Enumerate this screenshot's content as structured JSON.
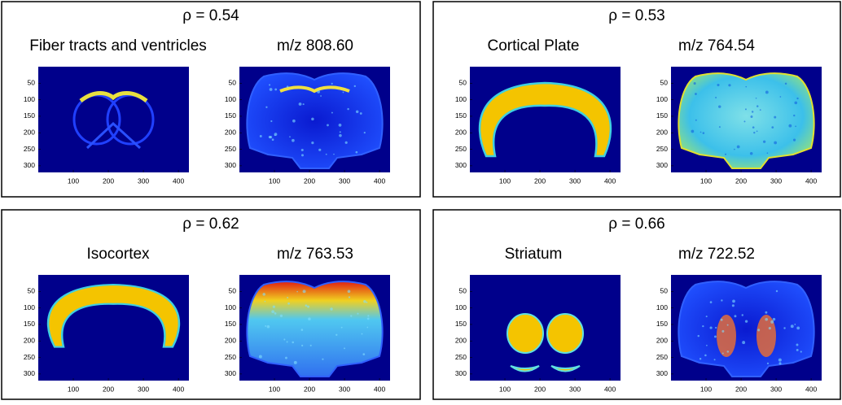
{
  "image_axes": {
    "xlim": [
      0,
      430
    ],
    "ylim": [
      0,
      320
    ],
    "xticks": [
      100,
      200,
      300,
      400
    ],
    "yticks": [
      50,
      100,
      150,
      200,
      250,
      300
    ]
  },
  "panels": [
    {
      "rho": "ρ = 0.54",
      "region": "Fiber tracts and ventricles",
      "mz": "m/z 808.60"
    },
    {
      "rho": "ρ = 0.53",
      "region": "Cortical Plate",
      "mz": "m/z 764.54"
    },
    {
      "rho": "ρ = 0.62",
      "region": "Isocortex",
      "mz": "m/z 763.53"
    },
    {
      "rho": "ρ = 0.66",
      "region": "Striatum",
      "mz": "m/z 722.52"
    }
  ]
}
